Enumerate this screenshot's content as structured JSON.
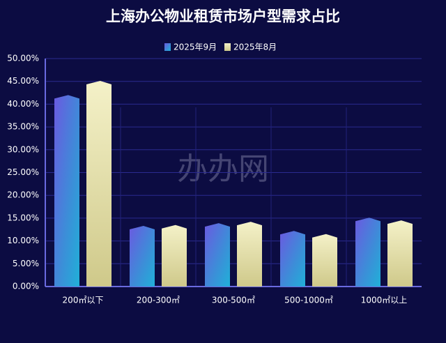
{
  "chart_data": {
    "type": "bar",
    "title": "上海办公物业租赁市场户型需求占比",
    "watermark": "办办网",
    "categories": [
      "200㎡以下",
      "200-300㎡",
      "300-500㎡",
      "500-1000㎡",
      "1000㎡以上"
    ],
    "series": [
      {
        "name": "2025年9月",
        "color": "#4f5fd8",
        "values": [
          42.0,
          13.3,
          13.9,
          12.2,
          15.1
        ]
      },
      {
        "name": "2025年8月",
        "color": "#dcd79a",
        "values": [
          45.1,
          13.5,
          14.2,
          11.5,
          14.5
        ]
      }
    ],
    "ylim": [
      0,
      50
    ],
    "yticks": [
      {
        "value": 0,
        "label": "0.00%"
      },
      {
        "value": 5,
        "label": "5.00%"
      },
      {
        "value": 10,
        "label": "10.00%"
      },
      {
        "value": 15,
        "label": "15.00%"
      },
      {
        "value": 20,
        "label": "20.00%"
      },
      {
        "value": 25,
        "label": "25.00%"
      },
      {
        "value": 30,
        "label": "30.00%"
      },
      {
        "value": 35,
        "label": "35.00%"
      },
      {
        "value": 40,
        "label": "40.00%"
      },
      {
        "value": 45,
        "label": "45.00%"
      },
      {
        "value": 50,
        "label": "50.00%"
      }
    ],
    "grid": true
  }
}
